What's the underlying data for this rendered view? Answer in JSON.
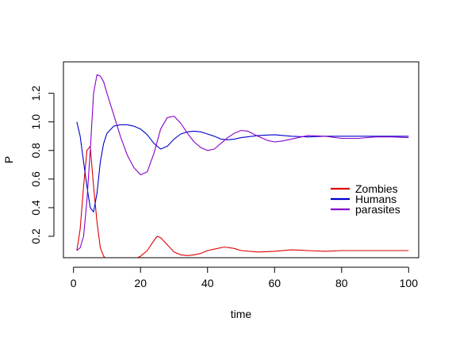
{
  "chart_data": {
    "type": "line",
    "title": "",
    "xlabel": "time",
    "ylabel": "P",
    "xlim": [
      -3,
      103
    ],
    "ylim": [
      0.05,
      1.42
    ],
    "xticks": [
      0,
      20,
      40,
      60,
      80,
      100
    ],
    "yticks": [
      0.2,
      0.4,
      0.6,
      0.8,
      1.0,
      1.2
    ],
    "ytick_labels": [
      "0.2",
      "0.4",
      "0.6",
      "0.8",
      "1.0",
      "1.2"
    ],
    "grid": false,
    "legend": "right",
    "series": [
      {
        "name": "Zombies",
        "color": "#dd0000",
        "x": [
          1,
          2,
          3,
          4,
          5,
          6,
          7,
          8,
          9,
          10,
          12,
          14,
          16,
          18,
          20,
          22,
          24,
          25,
          26,
          28,
          30,
          32,
          34,
          36,
          38,
          40,
          42,
          45,
          48,
          50,
          55,
          60,
          65,
          70,
          75,
          80,
          85,
          90,
          95,
          100
        ],
        "y": [
          0.1,
          0.25,
          0.55,
          0.8,
          0.83,
          0.55,
          0.3,
          0.12,
          0.06,
          0.04,
          0.03,
          0.03,
          0.03,
          0.04,
          0.06,
          0.1,
          0.17,
          0.2,
          0.19,
          0.14,
          0.09,
          0.07,
          0.065,
          0.07,
          0.08,
          0.1,
          0.11,
          0.125,
          0.115,
          0.1,
          0.09,
          0.095,
          0.105,
          0.1,
          0.095,
          0.1,
          0.1,
          0.1,
          0.1,
          0.1
        ]
      },
      {
        "name": "Humans",
        "color": "#0000cc",
        "x": [
          1,
          2,
          3,
          4,
          5,
          6,
          7,
          8,
          9,
          10,
          12,
          14,
          16,
          18,
          20,
          22,
          24,
          26,
          28,
          30,
          32,
          34,
          36,
          38,
          40,
          42,
          44,
          46,
          48,
          50,
          55,
          60,
          65,
          70,
          75,
          80,
          85,
          90,
          95,
          100
        ],
        "y": [
          1.0,
          0.9,
          0.72,
          0.55,
          0.4,
          0.37,
          0.5,
          0.72,
          0.85,
          0.92,
          0.97,
          0.98,
          0.98,
          0.97,
          0.95,
          0.91,
          0.85,
          0.81,
          0.83,
          0.88,
          0.915,
          0.93,
          0.935,
          0.93,
          0.915,
          0.9,
          0.88,
          0.875,
          0.88,
          0.89,
          0.905,
          0.91,
          0.9,
          0.895,
          0.9,
          0.9,
          0.9,
          0.9,
          0.9,
          0.9
        ]
      },
      {
        "name": "parasites",
        "color": "#8800cc",
        "x": [
          1,
          2,
          3,
          4,
          5,
          6,
          7,
          8,
          9,
          10,
          12,
          14,
          16,
          18,
          20,
          22,
          24,
          26,
          28,
          30,
          32,
          34,
          36,
          38,
          40,
          42,
          44,
          46,
          48,
          50,
          52,
          55,
          58,
          60,
          62,
          65,
          70,
          75,
          80,
          85,
          90,
          95,
          100
        ],
        "y": [
          0.1,
          0.12,
          0.2,
          0.45,
          0.8,
          1.2,
          1.33,
          1.32,
          1.28,
          1.2,
          1.05,
          0.9,
          0.77,
          0.68,
          0.63,
          0.65,
          0.78,
          0.95,
          1.03,
          1.04,
          0.99,
          0.92,
          0.86,
          0.82,
          0.8,
          0.81,
          0.85,
          0.89,
          0.92,
          0.94,
          0.935,
          0.9,
          0.87,
          0.86,
          0.865,
          0.88,
          0.905,
          0.9,
          0.885,
          0.885,
          0.895,
          0.895,
          0.89
        ]
      }
    ]
  }
}
